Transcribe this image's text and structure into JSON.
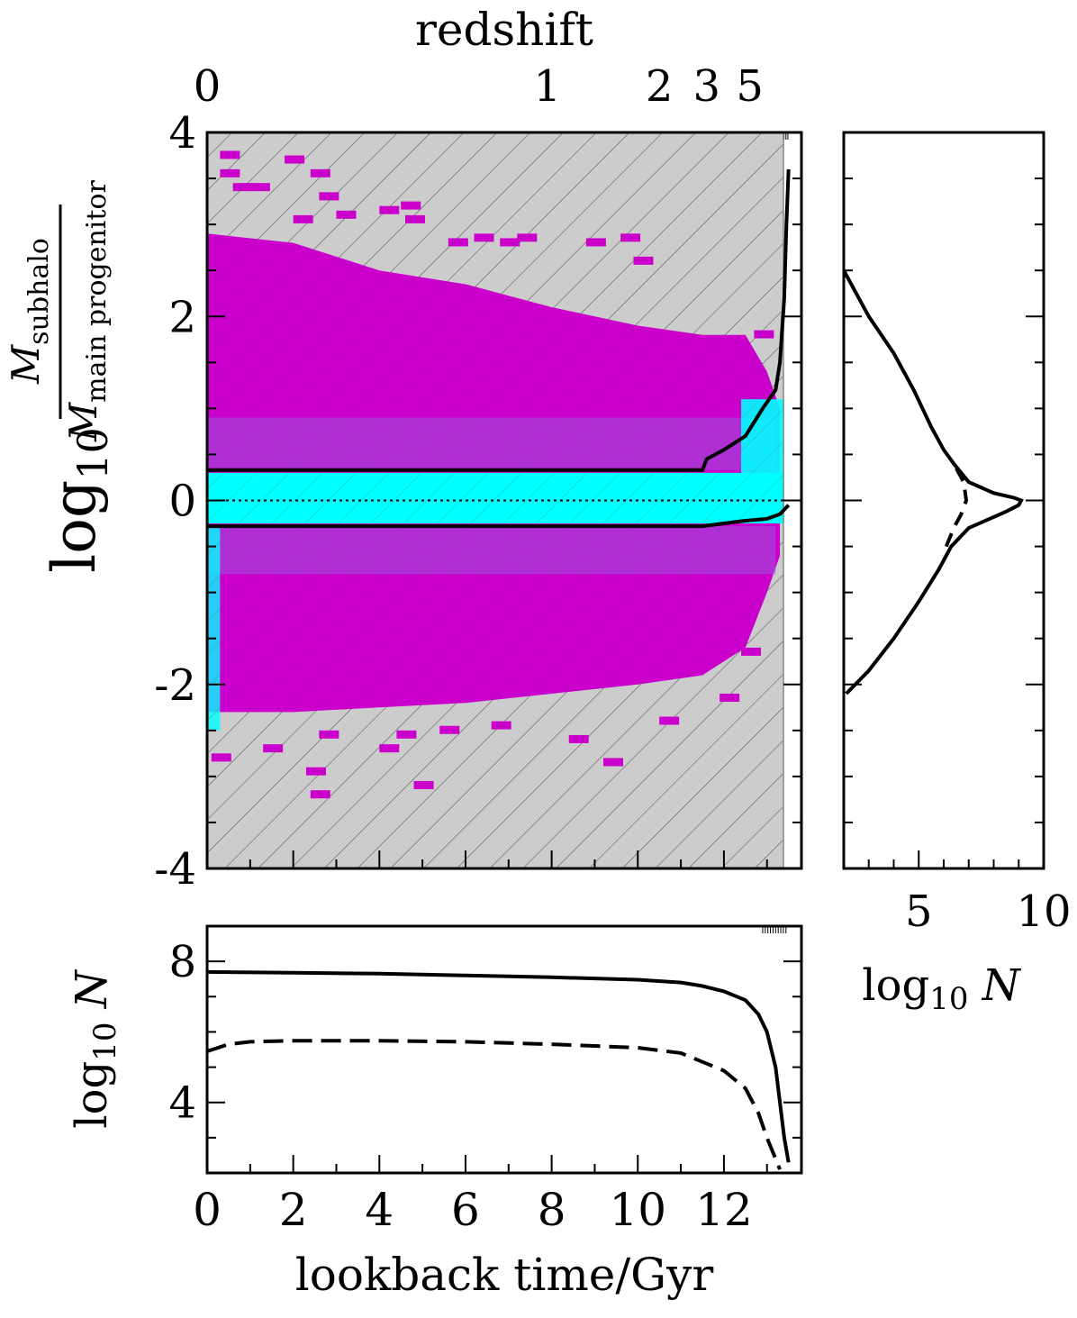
{
  "chart_data": [
    {
      "type": "heatmap",
      "panel": "main",
      "xlabel": "",
      "ylabel": "log10 M_subhalo / M_main progenitor",
      "ylabel_parts": {
        "base": "log",
        "sub": "10",
        "num": "M",
        "num_sub": "subhalo",
        "den": "M",
        "den_sub": "main progenitor"
      },
      "x_axis": "lookback time/Gyr",
      "xlim": [
        0,
        13.8
      ],
      "ylim": [
        -4,
        4
      ],
      "yticks": [
        "4",
        "2",
        "0",
        "-2",
        "-4"
      ],
      "ytick_values": [
        4,
        2,
        0,
        -2,
        -4
      ],
      "top_axis": {
        "label": "redshift",
        "ticks": [
          {
            "label": "0",
            "t": 0
          },
          {
            "label": "1",
            "t": 7.9
          },
          {
            "label": "2",
            "t": 10.5
          },
          {
            "label": "3",
            "t": 11.6
          },
          {
            "label": "5",
            "t": 12.6
          }
        ]
      },
      "hatched_background": true,
      "colors": {
        "magenta": "#cc00cc",
        "cyan": "#00ffff",
        "hatch_bg": "#cccccc",
        "blend": "#9955dd"
      },
      "upper_envelope": {
        "x": [
          0,
          11.5,
          11.6,
          12.0,
          12.5,
          12.9,
          13.2,
          13.3,
          13.4,
          13.45,
          13.5
        ],
        "y": [
          0.33,
          0.33,
          0.45,
          0.55,
          0.7,
          1.0,
          1.2,
          1.5,
          2.2,
          3.0,
          3.6
        ]
      },
      "lower_envelope": {
        "x": [
          0,
          11.5,
          12.0,
          12.5,
          13.0,
          13.3,
          13.5
        ],
        "y": [
          -0.28,
          -0.28,
          -0.25,
          -0.22,
          -0.2,
          -0.15,
          -0.05
        ]
      },
      "reference_line_y": 0,
      "magenta_region": {
        "x": [
          0,
          2,
          4,
          6,
          8,
          10,
          11.5,
          12.5,
          13.0,
          13.3
        ],
        "y_top": [
          2.9,
          2.8,
          2.5,
          2.35,
          2.1,
          1.9,
          1.8,
          1.8,
          1.4,
          1.0
        ],
        "y_bottom": [
          -2.3,
          -2.3,
          -2.25,
          -2.2,
          -2.1,
          -2.0,
          -1.9,
          -1.6,
          -1.0,
          -0.6
        ]
      },
      "cyan_band": {
        "y_top": 0.3,
        "y_bottom": -0.25,
        "x_end": 13.4,
        "tip_top": 1.1
      },
      "scatter_cells": [
        {
          "x": 0.3,
          "y": 3.8
        },
        {
          "x": 0.3,
          "y": 3.6
        },
        {
          "x": 0.6,
          "y": 3.45
        },
        {
          "x": 1.0,
          "y": 3.45
        },
        {
          "x": 1.8,
          "y": 3.75
        },
        {
          "x": 2.4,
          "y": 3.6
        },
        {
          "x": 2.6,
          "y": 3.35
        },
        {
          "x": 2.0,
          "y": 3.1
        },
        {
          "x": 4.0,
          "y": 3.2
        },
        {
          "x": 4.6,
          "y": 3.1
        },
        {
          "x": 4.5,
          "y": 3.25
        },
        {
          "x": 3.0,
          "y": 3.15
        },
        {
          "x": 6.2,
          "y": 2.9
        },
        {
          "x": 6.8,
          "y": 2.85
        },
        {
          "x": 7.2,
          "y": 2.9
        },
        {
          "x": 5.6,
          "y": 2.85
        },
        {
          "x": 9.6,
          "y": 2.9
        },
        {
          "x": 9.9,
          "y": 2.65
        },
        {
          "x": 8.8,
          "y": 2.85
        },
        {
          "x": 12.7,
          "y": 1.85
        },
        {
          "x": 12.0,
          "y": 1.75
        },
        {
          "x": 2.3,
          "y": -2.9
        },
        {
          "x": 2.4,
          "y": -3.15
        },
        {
          "x": 4.8,
          "y": -3.05
        },
        {
          "x": 0.1,
          "y": -2.75
        },
        {
          "x": 1.3,
          "y": -2.65
        },
        {
          "x": 2.6,
          "y": -2.5
        },
        {
          "x": 4.0,
          "y": -2.65
        },
        {
          "x": 4.4,
          "y": -2.5
        },
        {
          "x": 5.4,
          "y": -2.45
        },
        {
          "x": 8.4,
          "y": -2.55
        },
        {
          "x": 9.2,
          "y": -2.8
        },
        {
          "x": 11.9,
          "y": -2.1
        },
        {
          "x": 12.4,
          "y": -1.6
        },
        {
          "x": 10.5,
          "y": -2.35
        },
        {
          "x": 6.6,
          "y": -2.4
        }
      ]
    },
    {
      "type": "line",
      "panel": "right",
      "xlabel": "log10 N",
      "xlabel_parts": {
        "base": "log",
        "sub": "10",
        "var": "N"
      },
      "xlim": [
        2,
        10
      ],
      "xticks": [
        "5",
        "10"
      ],
      "xtick_values": [
        5,
        10
      ],
      "series": [
        {
          "style": "solid",
          "x": [
            2.0,
            3.0,
            4.0,
            4.8,
            5.5,
            6.0,
            6.4,
            7.0,
            8.0,
            8.8,
            9.1,
            9.0,
            8.5,
            7.0,
            6.3,
            5.8,
            5.0,
            4.0,
            3.0,
            2.1
          ],
          "y": [
            2.5,
            2.0,
            1.6,
            1.2,
            0.8,
            0.55,
            0.4,
            0.2,
            0.08,
            0.03,
            0.0,
            -0.05,
            -0.12,
            -0.3,
            -0.5,
            -0.75,
            -1.1,
            -1.5,
            -1.85,
            -2.1
          ]
        },
        {
          "style": "dashed",
          "x": [
            6.5,
            6.8,
            6.9,
            6.7,
            6.4,
            6.1
          ],
          "y": [
            0.35,
            0.2,
            0.0,
            -0.15,
            -0.3,
            -0.5
          ]
        }
      ]
    },
    {
      "type": "line",
      "panel": "bottom",
      "xlabel": "lookback time/Gyr",
      "ylabel": "log10 N",
      "ylabel_parts": {
        "base": "log",
        "sub": "10",
        "var": "N"
      },
      "xlim": [
        0,
        13.8
      ],
      "ylim": [
        2,
        9
      ],
      "xticks": [
        "0",
        "2",
        "4",
        "6",
        "8",
        "10",
        "12"
      ],
      "xtick_values": [
        0,
        2,
        4,
        6,
        8,
        10,
        12
      ],
      "yticks": [
        "8",
        "4"
      ],
      "ytick_values": [
        8,
        4
      ],
      "series": [
        {
          "style": "solid",
          "x": [
            0,
            2,
            4,
            6,
            8,
            10,
            11,
            11.5,
            12,
            12.5,
            12.8,
            13.0,
            13.2,
            13.3,
            13.4,
            13.5
          ],
          "y": [
            7.7,
            7.68,
            7.65,
            7.6,
            7.55,
            7.48,
            7.4,
            7.3,
            7.15,
            6.9,
            6.5,
            6.0,
            5.0,
            4.0,
            3.0,
            2.3
          ]
        },
        {
          "style": "dashed",
          "x": [
            0,
            0.5,
            1,
            2,
            4,
            6,
            8,
            10,
            11,
            11.5,
            12,
            12.5,
            12.8,
            13.0,
            13.2,
            13.3
          ],
          "y": [
            5.45,
            5.65,
            5.72,
            5.75,
            5.75,
            5.72,
            5.65,
            5.55,
            5.4,
            5.15,
            4.9,
            4.4,
            3.7,
            3.0,
            2.4,
            2.1
          ]
        }
      ]
    }
  ]
}
